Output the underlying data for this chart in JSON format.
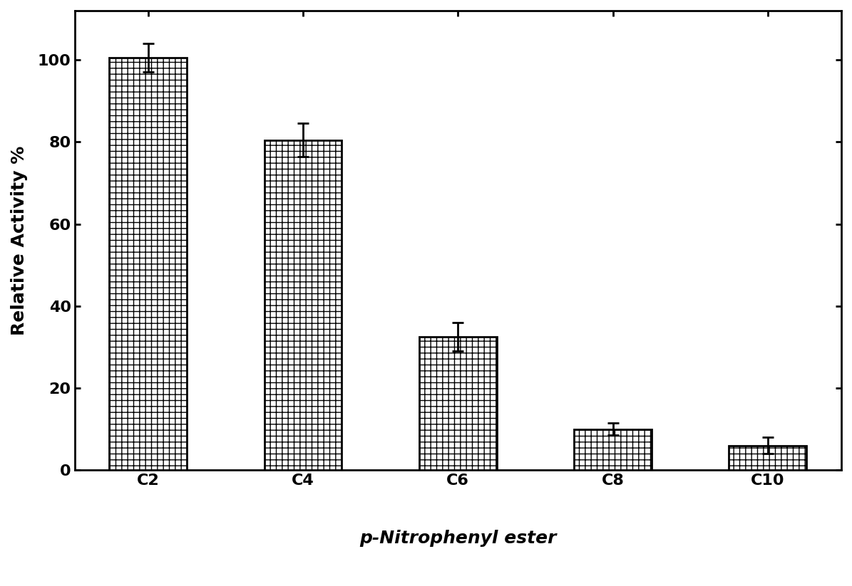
{
  "categories": [
    "C2",
    "C4",
    "C6",
    "C8",
    "C10"
  ],
  "values": [
    100.5,
    80.5,
    32.5,
    10.0,
    6.0
  ],
  "errors": [
    3.5,
    4.0,
    3.5,
    1.5,
    2.0
  ],
  "ylabel": "Relative Activity %",
  "xlabel": "p-Nitrophenyl ester",
  "ylim": [
    0,
    112
  ],
  "yticks": [
    0,
    20,
    40,
    60,
    80,
    100
  ],
  "bar_facecolor": "#ffffff",
  "hatch": "++",
  "bar_edgecolor": "#000000",
  "background_color": "#ffffff",
  "bar_width": 0.5,
  "axis_fontsize": 18,
  "tick_fontsize": 16,
  "ylabel_fontsize": 18,
  "spine_linewidth": 2.0
}
